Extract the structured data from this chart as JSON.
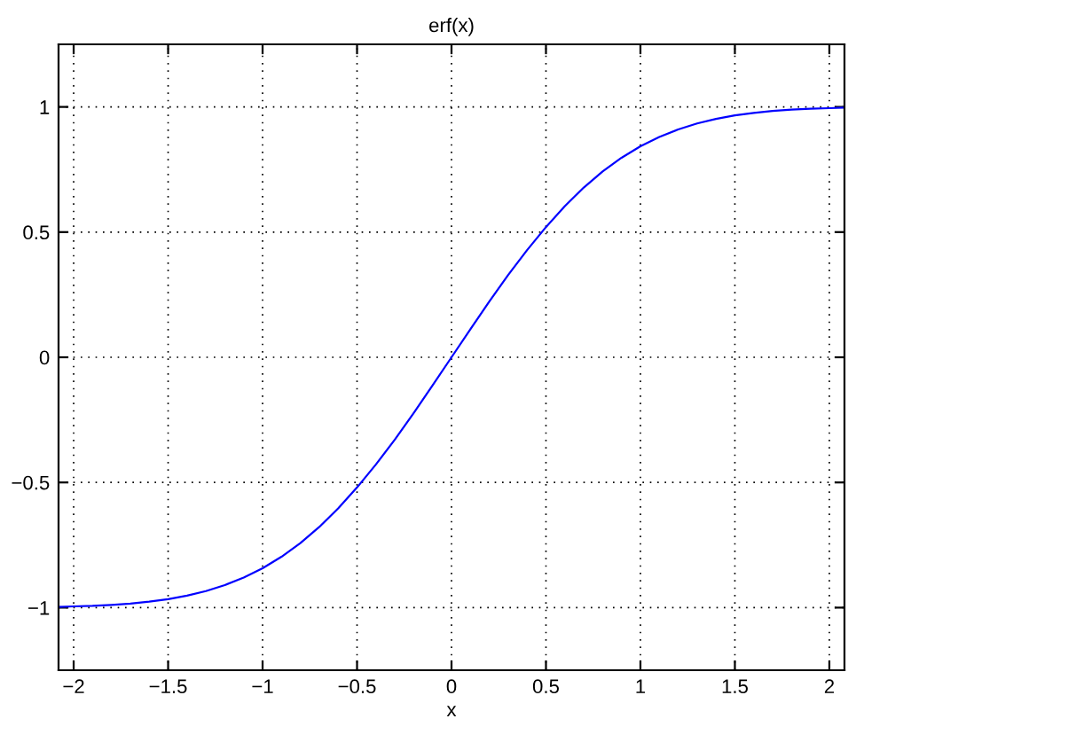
{
  "chart_data": {
    "type": "line",
    "title": "erf(x)",
    "xlabel": "x",
    "x": [
      -2.08,
      -2.0,
      -1.9,
      -1.8,
      -1.7,
      -1.6,
      -1.5,
      -1.4,
      -1.3,
      -1.2,
      -1.1,
      -1.0,
      -0.9,
      -0.8,
      -0.7,
      -0.6,
      -0.5,
      -0.4,
      -0.3,
      -0.2,
      -0.1,
      0,
      0.1,
      0.2,
      0.3,
      0.4,
      0.5,
      0.6,
      0.7,
      0.8,
      0.9,
      1.0,
      1.1,
      1.2,
      1.3,
      1.4,
      1.5,
      1.6,
      1.7,
      1.8,
      1.9,
      2.0,
      2.08
    ],
    "series": [
      {
        "color": "#0000ff",
        "values": [
          -0.997,
          -0.995,
          -0.993,
          -0.989,
          -0.984,
          -0.976,
          -0.966,
          -0.952,
          -0.934,
          -0.91,
          -0.88,
          -0.843,
          -0.797,
          -0.742,
          -0.678,
          -0.604,
          -0.52,
          -0.428,
          -0.329,
          -0.223,
          -0.112,
          0,
          0.112,
          0.223,
          0.329,
          0.428,
          0.52,
          0.604,
          0.678,
          0.742,
          0.797,
          0.843,
          0.88,
          0.91,
          0.934,
          0.952,
          0.966,
          0.976,
          0.984,
          0.989,
          0.993,
          0.995,
          0.997
        ]
      }
    ],
    "xlim": [
      -2.08,
      2.08
    ],
    "ylim": [
      -1.25,
      1.25
    ],
    "xticks": [
      {
        "value": -2,
        "label": "−2"
      },
      {
        "value": -1.5,
        "label": "−1.5"
      },
      {
        "value": -1,
        "label": "−1"
      },
      {
        "value": -0.5,
        "label": "−0.5"
      },
      0,
      0.5,
      1,
      1.5,
      2
    ],
    "yticks": [
      {
        "value": -1,
        "label": "−1"
      },
      {
        "value": -0.5,
        "label": "−0.5"
      },
      0,
      0.5,
      1
    ],
    "grid": true,
    "line_style": "solid",
    "marker": "none"
  }
}
